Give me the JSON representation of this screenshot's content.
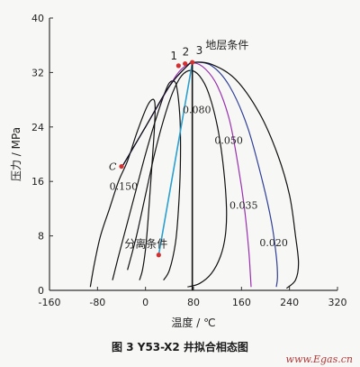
{
  "chart_data": {
    "type": "line",
    "title": "",
    "xlabel": "温度 / ℃",
    "ylabel": "压力 / MPa",
    "xlim": [
      -160,
      320
    ],
    "ylim": [
      0,
      40
    ],
    "x_ticks": [
      "-160",
      "-80",
      "0",
      "80",
      "160",
      "240",
      "320"
    ],
    "y_ticks": [
      "0",
      "8",
      "16",
      "24",
      "32",
      "40"
    ],
    "grid": false,
    "series": [
      {
        "name": "0.150",
        "color": "#111111",
        "x": [
          -92,
          -85,
          -75,
          -60,
          -45,
          -30,
          -15,
          0,
          8,
          14,
          16,
          15,
          12,
          8,
          4,
          0,
          -5,
          -10
        ],
        "y": [
          0.5,
          4,
          8,
          12,
          16,
          19,
          23,
          26.5,
          27.8,
          28,
          27,
          24,
          20,
          15,
          10,
          6,
          3,
          1.5
        ]
      },
      {
        "name": "0.080",
        "color": "#111111",
        "x": [
          -55,
          -45,
          -30,
          -15,
          0,
          15,
          30,
          40,
          50,
          55,
          58,
          58,
          55,
          50,
          40,
          30
        ],
        "y": [
          1.5,
          5,
          10,
          15,
          20,
          24.5,
          28.5,
          30.5,
          30.5,
          28,
          24,
          18,
          12,
          7,
          3,
          1.5
        ]
      },
      {
        "name": "0.050",
        "color": "#111111",
        "x": [
          -30,
          -15,
          0,
          15,
          30,
          45,
          60,
          75,
          90,
          105,
          120,
          130,
          135,
          133,
          125,
          110,
          90,
          70
        ],
        "y": [
          3,
          8,
          14,
          20,
          25,
          29,
          31.5,
          32.3,
          31.5,
          29,
          24,
          18,
          12,
          8,
          5,
          2.5,
          1,
          0.5
        ]
      },
      {
        "name": "0.035",
        "color": "#9a2fb0",
        "x": [
          -40,
          0,
          40,
          60,
          80,
          100,
          120,
          140,
          155,
          165,
          172,
          175,
          176
        ],
        "y": [
          18,
          24,
          30,
          32.5,
          33.4,
          32.5,
          30,
          25,
          18,
          12,
          6,
          2,
          0.5
        ]
      },
      {
        "name": "0.020",
        "color": "#2f3f9a",
        "x": [
          -40,
          0,
          40,
          70,
          80,
          110,
          140,
          170,
          195,
          210,
          218,
          220,
          218
        ],
        "y": [
          18,
          24,
          30,
          33,
          33.5,
          33,
          30,
          24,
          16,
          10,
          5,
          2,
          0.5
        ]
      },
      {
        "name": "",
        "color": "#111111",
        "x": [
          -40,
          0,
          40,
          70,
          80,
          110,
          150,
          190,
          220,
          240,
          250,
          255,
          250,
          235
        ],
        "y": [
          18,
          24,
          30,
          33,
          33.5,
          33.2,
          31,
          26,
          20,
          14,
          8,
          4,
          1.5,
          0.3
        ]
      },
      {
        "name": "",
        "color": "#2a9fd0",
        "x": [
          22,
          78
        ],
        "y": [
          5.2,
          33.4
        ]
      },
      {
        "name": "",
        "color": "#111111",
        "x": [
          78,
          78
        ],
        "y": [
          0,
          33.4
        ]
      }
    ],
    "points": [
      {
        "label": "C",
        "x": -40,
        "y": 18.2
      },
      {
        "label": "1",
        "x": 55,
        "y": 33
      },
      {
        "label": "2",
        "x": 66,
        "y": 33.3
      },
      {
        "label": "3",
        "x": 78,
        "y": 33.5
      },
      {
        "label": "分离条件",
        "x": 22,
        "y": 5.2
      }
    ],
    "annotations": [
      {
        "text": "地层条件"
      }
    ]
  },
  "caption": "图 3    Y53-X2 井拟合相态图",
  "watermark": "www.Egas.cn",
  "colors": {
    "background": "#f7f8f6",
    "blue_line": "#2a9fd0",
    "point": "#d62f2f",
    "purple": "#9a2fb0",
    "navy": "#2f3f9a"
  }
}
